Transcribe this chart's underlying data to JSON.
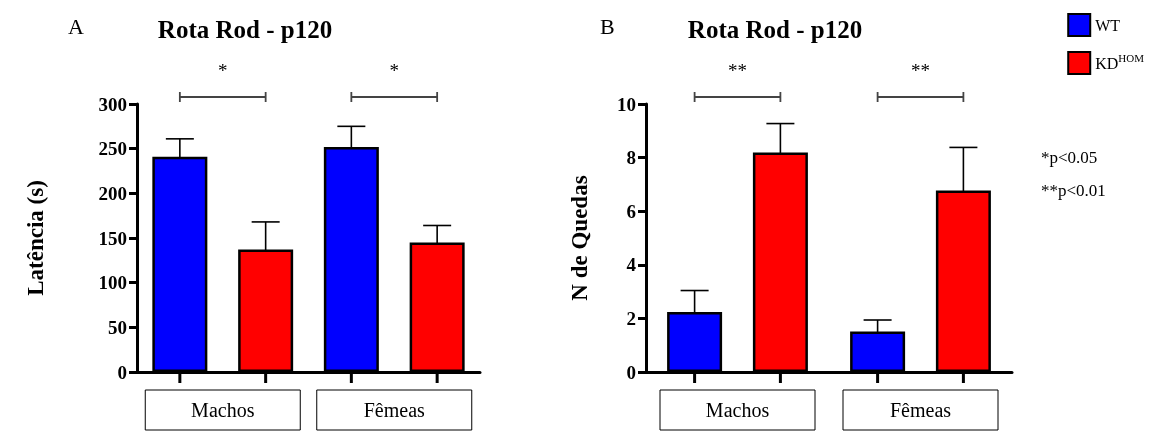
{
  "chart_data": [
    {
      "type": "bar",
      "title": "Rota Rod - p120",
      "ylabel": "Latência (s)",
      "categories": [
        "Machos",
        "Fêmeas"
      ],
      "series": [
        {
          "color": "#0000ff",
          "values": [
            241,
            252
          ],
          "errors": [
            20,
            23
          ]
        },
        {
          "color": "#ff0000",
          "values": [
            137,
            145
          ],
          "errors": [
            31,
            19
          ]
        }
      ],
      "ylim": [
        0,
        300
      ],
      "yticks": [
        0,
        50,
        100,
        150,
        200,
        250,
        300
      ],
      "grid": false,
      "legend": false,
      "annotations": [
        "A",
        "*",
        "*"
      ]
    },
    {
      "type": "bar",
      "title": "Rota Rod - p120",
      "ylabel": "N de Quedas",
      "categories": [
        "Machos",
        "Fêmeas"
      ],
      "series": [
        {
          "name": "WT",
          "color": "#0000ff",
          "values": [
            2.24,
            1.51
          ],
          "errors": [
            0.8,
            0.43
          ]
        },
        {
          "name": "KD$^{HOM}$",
          "color": "#ff0000",
          "values": [
            8.19,
            6.77
          ],
          "errors": [
            1.08,
            1.61
          ]
        }
      ],
      "ylim": [
        0,
        10
      ],
      "yticks": [
        0,
        2,
        4,
        6,
        8,
        10
      ],
      "grid": false,
      "legend": "right",
      "annotations": [
        "B",
        "**",
        "**",
        "*p<0.05",
        "**p<0.01"
      ]
    }
  ]
}
